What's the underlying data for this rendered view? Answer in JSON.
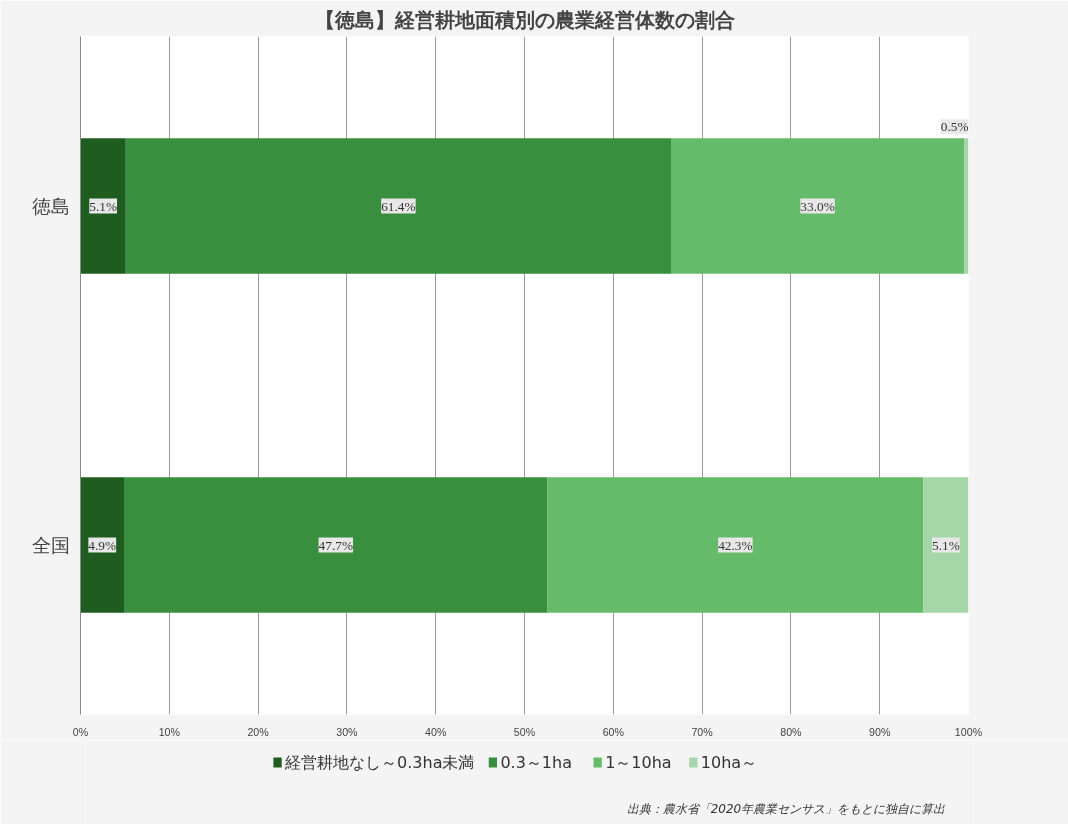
{
  "chart_data": {
    "type": "bar",
    "orientation": "horizontal",
    "stacked": true,
    "title": "【徳島】経営耕地面積別の農業経営体数の割合",
    "categories": [
      "徳島",
      "全国"
    ],
    "series": [
      {
        "name": "経営耕地なし～0.3ha未満",
        "color": "#1e5c20",
        "values": [
          5.1,
          4.9
        ],
        "value_labels": [
          "5.1%",
          "4.9%"
        ]
      },
      {
        "name": "0.3～1ha",
        "color": "#3a8f3f",
        "values": [
          61.4,
          47.7
        ],
        "value_labels": [
          "61.4%",
          "47.7%"
        ]
      },
      {
        "name": "1～10ha",
        "color": "#66bb6a",
        "values": [
          33.0,
          42.3
        ],
        "value_labels": [
          "33.0%",
          "42.3%"
        ]
      },
      {
        "name": "10ha～",
        "color": "#a5d6a7",
        "values": [
          0.5,
          5.1
        ],
        "value_labels": [
          "0.5%",
          "5.1%"
        ]
      }
    ],
    "xlim": [
      0,
      100
    ],
    "xticks": [
      {
        "value": 0,
        "label": "0%"
      },
      {
        "value": 10,
        "label": "10%"
      },
      {
        "value": 20,
        "label": "20%"
      },
      {
        "value": 30,
        "label": "30%"
      },
      {
        "value": 40,
        "label": "40%"
      },
      {
        "value": 50,
        "label": "50%"
      },
      {
        "value": 60,
        "label": "60%"
      },
      {
        "value": 70,
        "label": "70%"
      },
      {
        "value": 80,
        "label": "80%"
      },
      {
        "value": 90,
        "label": "90%"
      },
      {
        "value": 100,
        "label": "100%"
      }
    ],
    "grid": "x",
    "legend": "bottom",
    "annotations": [
      "出典：農水省「2020年農業センサス」をもとに独自に算出"
    ]
  }
}
